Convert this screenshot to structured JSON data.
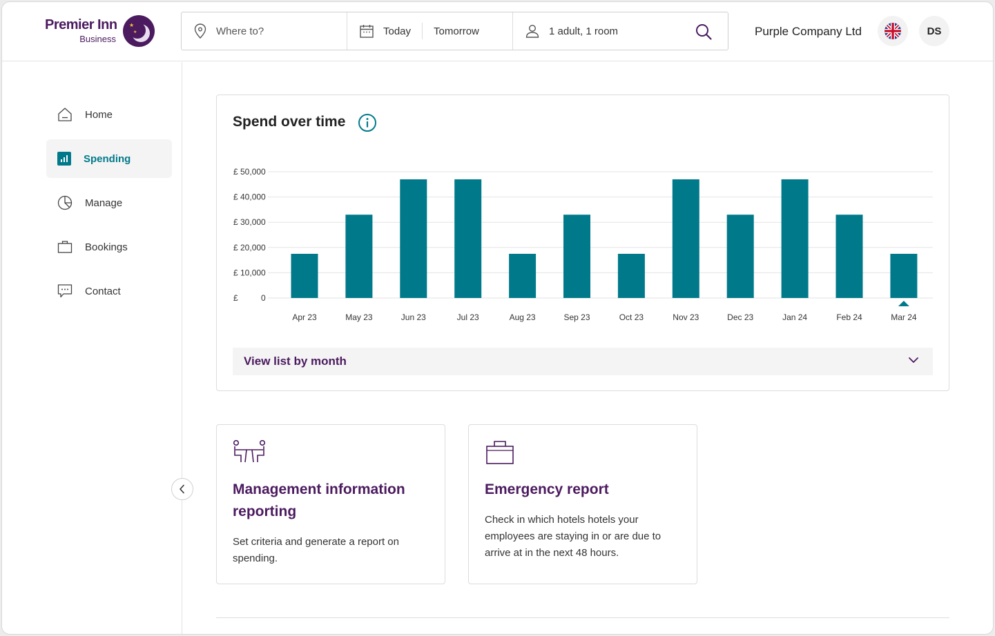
{
  "brand": {
    "name": "Premier Inn",
    "sub": "Business"
  },
  "search": {
    "where_placeholder": "Where to?",
    "check_in": "Today",
    "check_out": "Tomorrow",
    "guests": "1 adult, 1 room"
  },
  "header": {
    "company": "Purple Company Ltd",
    "avatar_initials": "DS",
    "language_flag": "uk-flag-icon"
  },
  "sidebar": {
    "items": [
      {
        "label": "Home",
        "icon": "home-icon",
        "active": false
      },
      {
        "label": "Spending",
        "icon": "chart-icon",
        "active": true
      },
      {
        "label": "Manage",
        "icon": "pie-chart-icon",
        "active": false
      },
      {
        "label": "Bookings",
        "icon": "briefcase-icon",
        "active": false
      },
      {
        "label": "Contact",
        "icon": "chat-icon",
        "active": false
      }
    ]
  },
  "spend_card": {
    "title": "Spend over time",
    "accordion_label": "View list by month"
  },
  "chart_data": {
    "type": "bar",
    "title": "Spend over time",
    "categories": [
      "Apr 23",
      "May 23",
      "Jun 23",
      "Jul 23",
      "Aug 23",
      "Sep 23",
      "Oct 23",
      "Nov 23",
      "Dec 23",
      "Jan 24",
      "Feb 24",
      "Mar 24"
    ],
    "values": [
      17500,
      33000,
      47000,
      47000,
      17500,
      33000,
      17500,
      47000,
      33000,
      47000,
      33000,
      17500
    ],
    "y_ticks": [
      "£ 50,000",
      "£ 40,000",
      "£ 30,000",
      "£ 20,000",
      "£ 10,000",
      "£          0"
    ],
    "ylim": [
      0,
      50000
    ],
    "grid": true,
    "selected": "Mar 24",
    "bar_color": "#007a8a"
  },
  "cards": [
    {
      "title": "Management information reporting",
      "description": "Set criteria and generate a report on spending.",
      "icon": "meeting-icon"
    },
    {
      "title": "Emergency report",
      "description": "Check in which hotels hotels your employees are staying in or are due to arrive at in the next 48 hours.",
      "icon": "briefcase-icon"
    }
  ],
  "colors": {
    "brand_purple": "#4b1a5f",
    "accent_teal": "#007a8a"
  }
}
